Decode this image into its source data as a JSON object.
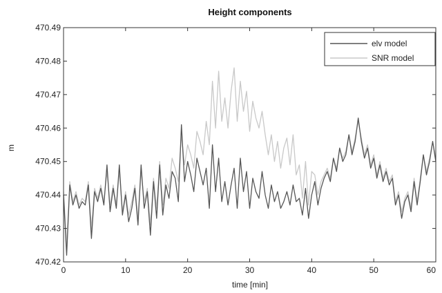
{
  "chart_data": {
    "type": "line",
    "title": "Height components",
    "xlabel": "time [min]",
    "ylabel": "m",
    "xlim": [
      0,
      60
    ],
    "ylim": [
      470.42,
      470.49
    ],
    "xticks": [
      0,
      10,
      20,
      30,
      40,
      50,
      60
    ],
    "xtick_labels": [
      "0",
      "10",
      "20",
      "30",
      "40",
      "50",
      "60"
    ],
    "yticks": [
      470.42,
      470.43,
      470.44,
      470.45,
      470.46,
      470.47,
      470.48,
      470.49
    ],
    "ytick_labels": [
      "470.42",
      "470.43",
      "470.44",
      "470.45",
      "470.46",
      "470.47",
      "470.48",
      "470.49"
    ],
    "grid": false,
    "legend_position": "top-right",
    "series": [
      {
        "name": "elv model",
        "color": "#555555",
        "x": [
          0,
          0.5,
          1,
          1.5,
          2,
          2.5,
          3,
          3.5,
          4,
          4.5,
          5,
          5.5,
          6,
          6.5,
          7,
          7.5,
          8,
          8.5,
          9,
          9.5,
          10,
          10.5,
          11,
          11.5,
          12,
          12.5,
          13,
          13.5,
          14,
          14.5,
          15,
          15.5,
          16,
          16.5,
          17,
          17.5,
          18,
          18.5,
          19,
          19.5,
          20,
          20.5,
          21,
          21.5,
          22,
          22.5,
          23,
          23.5,
          24,
          24.5,
          25,
          25.5,
          26,
          26.5,
          27,
          27.5,
          28,
          28.5,
          29,
          29.5,
          30,
          30.5,
          31,
          31.5,
          32,
          32.5,
          33,
          33.5,
          34,
          34.5,
          35,
          35.5,
          36,
          36.5,
          37,
          37.5,
          38,
          38.5,
          39,
          39.5,
          40,
          40.5,
          41,
          41.5,
          42,
          42.5,
          43,
          43.5,
          44,
          44.5,
          45,
          45.5,
          46,
          46.5,
          47,
          47.5,
          48,
          48.5,
          49,
          49.5,
          50,
          50.5,
          51,
          51.5,
          52,
          52.5,
          53,
          53.5,
          54,
          54.5,
          55,
          55.5,
          56,
          56.5,
          57,
          57.5,
          58,
          58.5,
          59,
          59.5,
          60
        ],
        "values": [
          470.44,
          470.422,
          470.443,
          470.437,
          470.44,
          470.436,
          470.438,
          470.437,
          470.443,
          470.427,
          470.441,
          470.438,
          470.442,
          470.437,
          470.449,
          470.435,
          470.442,
          470.436,
          470.449,
          470.434,
          470.44,
          470.432,
          470.436,
          470.442,
          470.431,
          470.449,
          470.436,
          470.441,
          470.428,
          470.444,
          470.433,
          470.449,
          470.434,
          470.443,
          470.439,
          470.447,
          470.445,
          470.438,
          470.461,
          470.444,
          470.45,
          470.446,
          470.441,
          470.451,
          470.447,
          470.443,
          470.448,
          470.436,
          470.455,
          470.441,
          470.451,
          470.438,
          470.444,
          470.437,
          470.443,
          470.448,
          470.436,
          470.451,
          470.441,
          470.447,
          470.436,
          470.445,
          470.441,
          470.439,
          470.447,
          470.44,
          470.436,
          470.443,
          470.438,
          470.441,
          470.436,
          470.438,
          470.441,
          470.437,
          470.443,
          470.438,
          470.439,
          470.434,
          470.442,
          470.433,
          470.44,
          470.444,
          470.437,
          470.442,
          470.445,
          470.447,
          470.444,
          470.451,
          470.447,
          470.454,
          470.45,
          470.452,
          470.458,
          470.452,
          470.456,
          470.463,
          470.456,
          470.451,
          470.454,
          470.448,
          470.451,
          470.445,
          470.449,
          470.444,
          470.447,
          470.443,
          470.445,
          470.437,
          470.44,
          470.433,
          470.438,
          470.44,
          470.435,
          470.444,
          470.437,
          470.444,
          470.452,
          470.446,
          470.45,
          470.456,
          470.45
        ],
        "line_width": 1.3
      },
      {
        "name": "SNR model",
        "color": "#c8c8c8",
        "x": [
          0,
          0.5,
          1,
          1.5,
          2,
          2.5,
          3,
          3.5,
          4,
          4.5,
          5,
          5.5,
          6,
          6.5,
          7,
          7.5,
          8,
          8.5,
          9,
          9.5,
          10,
          10.5,
          11,
          11.5,
          12,
          12.5,
          13,
          13.5,
          14,
          14.5,
          15,
          15.5,
          16,
          16.5,
          17,
          17.5,
          18,
          18.5,
          19,
          19.5,
          20,
          20.5,
          21,
          21.5,
          22,
          22.5,
          23,
          23.5,
          24,
          24.5,
          25,
          25.5,
          26,
          26.5,
          27,
          27.5,
          28,
          28.5,
          29,
          29.5,
          30,
          30.5,
          31,
          31.5,
          32,
          32.5,
          33,
          33.5,
          34,
          34.5,
          35,
          35.5,
          36,
          36.5,
          37,
          37.5,
          38,
          38.5,
          39,
          39.5,
          40,
          40.5,
          41,
          41.5,
          42,
          42.5,
          43,
          43.5,
          44,
          44.5,
          45,
          45.5,
          46,
          46.5,
          47,
          47.5,
          48,
          48.5,
          49,
          49.5,
          50,
          50.5,
          51,
          51.5,
          52,
          52.5,
          53,
          53.5,
          54,
          54.5,
          55,
          55.5,
          56,
          56.5,
          57,
          57.5,
          58,
          58.5,
          59,
          59.5,
          60
        ],
        "values": [
          470.441,
          470.425,
          470.444,
          470.438,
          470.441,
          470.437,
          470.439,
          470.438,
          470.444,
          470.43,
          470.442,
          470.439,
          470.443,
          470.438,
          470.447,
          470.437,
          470.443,
          470.437,
          470.447,
          470.435,
          470.441,
          470.434,
          470.438,
          470.443,
          470.433,
          470.447,
          470.438,
          470.442,
          470.431,
          470.445,
          470.436,
          470.45,
          470.437,
          470.445,
          470.442,
          470.451,
          470.448,
          470.444,
          470.458,
          470.449,
          470.455,
          470.452,
          470.448,
          470.459,
          470.456,
          470.452,
          470.462,
          470.455,
          470.474,
          470.46,
          470.477,
          470.462,
          470.469,
          470.46,
          470.471,
          470.478,
          470.462,
          470.474,
          470.465,
          470.471,
          470.459,
          470.468,
          470.463,
          470.46,
          470.465,
          470.458,
          470.452,
          470.458,
          470.45,
          470.456,
          470.448,
          470.454,
          470.457,
          470.449,
          470.458,
          470.446,
          470.449,
          470.439,
          470.45,
          470.437,
          470.447,
          470.446,
          470.44,
          470.444,
          470.446,
          470.448,
          470.445,
          470.451,
          470.448,
          470.454,
          470.451,
          470.453,
          470.458,
          470.453,
          470.457,
          470.462,
          470.457,
          470.452,
          470.455,
          470.449,
          470.452,
          470.446,
          470.45,
          470.445,
          470.448,
          470.444,
          470.446,
          470.438,
          470.441,
          470.435,
          470.439,
          470.441,
          470.436,
          470.445,
          470.438,
          470.445,
          470.452,
          470.447,
          470.451,
          470.456,
          470.451
        ],
        "line_width": 1.3
      }
    ]
  }
}
